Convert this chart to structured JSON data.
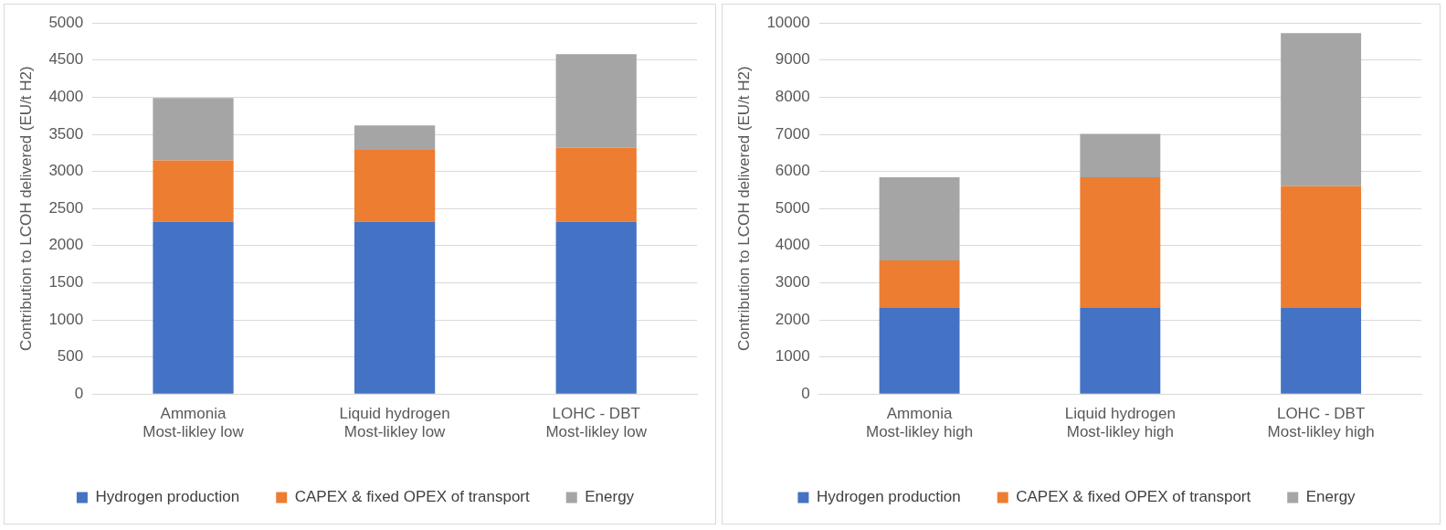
{
  "chart_data": [
    {
      "type": "bar",
      "stacked": true,
      "ylabel": "Contribution to LCOH delivered (EU/t H2)",
      "categories": [
        "Ammonia\nMost-likley low",
        "Liquid hydrogen\nMost-likley low",
        "LOHC - DBT\nMost-likley low"
      ],
      "series": [
        {
          "name": "Hydrogen production",
          "color": "#4472c4",
          "values": [
            2320,
            2320,
            2320
          ]
        },
        {
          "name": "CAPEX & fixed OPEX of transport",
          "color": "#ed7d31",
          "values": [
            830,
            970,
            1000
          ]
        },
        {
          "name": "Energy",
          "color": "#a5a5a5",
          "values": [
            840,
            330,
            1260
          ]
        }
      ],
      "ylim": [
        0,
        5000
      ],
      "yticks": [
        0,
        500,
        1000,
        1500,
        2000,
        2500,
        3000,
        3500,
        4000,
        4500,
        5000
      ],
      "grid": "y",
      "legend": "bottom"
    },
    {
      "type": "bar",
      "stacked": true,
      "ylabel": "Contribution to LCOH delivered (EU/t H2)",
      "categories": [
        "Ammonia\nMost-likley high",
        "Liquid hydrogen\nMost-likley high",
        "LOHC - DBT\nMost-likley high"
      ],
      "series": [
        {
          "name": "Hydrogen production",
          "color": "#4472c4",
          "values": [
            2320,
            2320,
            2320
          ]
        },
        {
          "name": "CAPEX & fixed OPEX of transport",
          "color": "#ed7d31",
          "values": [
            1280,
            3520,
            3280
          ]
        },
        {
          "name": "Energy",
          "color": "#a5a5a5",
          "values": [
            2240,
            1170,
            4130
          ]
        }
      ],
      "ylim": [
        0,
        10000
      ],
      "yticks": [
        0,
        1000,
        2000,
        3000,
        4000,
        5000,
        6000,
        7000,
        8000,
        9000,
        10000
      ],
      "grid": "y",
      "legend": "bottom"
    }
  ]
}
